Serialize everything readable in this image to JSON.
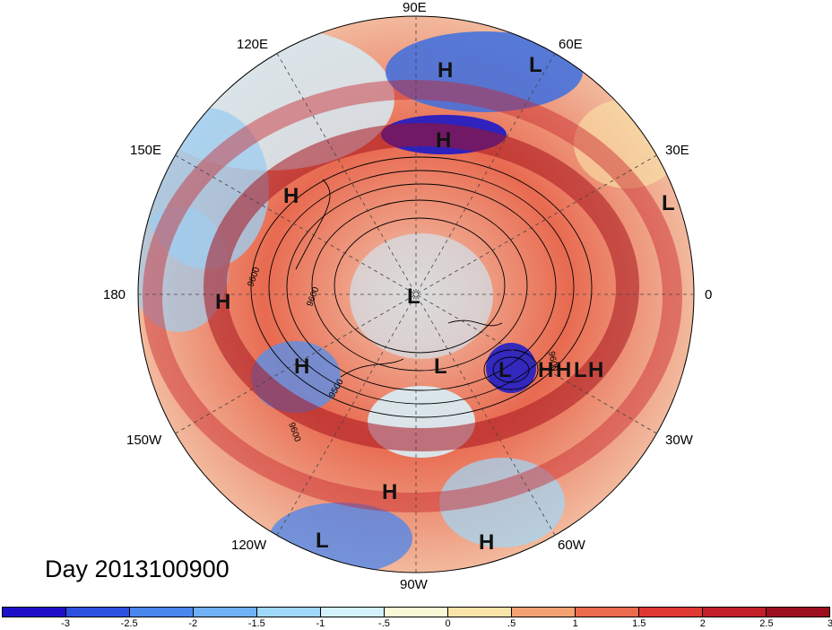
{
  "title": "Day 2013100900",
  "longitude_labels": [
    "90E",
    "60E",
    "30E",
    "0",
    "30W",
    "60W",
    "90W",
    "120W",
    "150W",
    "180",
    "150E",
    "120E"
  ],
  "pressure_systems": [
    "H",
    "L",
    "H",
    "L",
    "H",
    "H",
    "L",
    "H",
    "L",
    "H",
    "H",
    "L",
    "H",
    "L",
    "H",
    "H",
    "L"
  ],
  "contour_labels": [
    "9600",
    "9600",
    "9500",
    "9600",
    "9600"
  ],
  "colorbar": {
    "colors": [
      "#1e10c8",
      "#2e50e0",
      "#4a86ee",
      "#6fb1f4",
      "#9fd8fa",
      "#d3f1fb",
      "#fbf8d8",
      "#fae4a8",
      "#f5a273",
      "#ec6b4e",
      "#e03833",
      "#c21f2a",
      "#9d0f1f"
    ],
    "ticks": [
      "-3",
      "-2.5",
      "-2",
      "-1.5",
      "-1",
      "-.5",
      "0",
      ".5",
      "1",
      "1.5",
      "2",
      "2.5",
      "3"
    ]
  }
}
